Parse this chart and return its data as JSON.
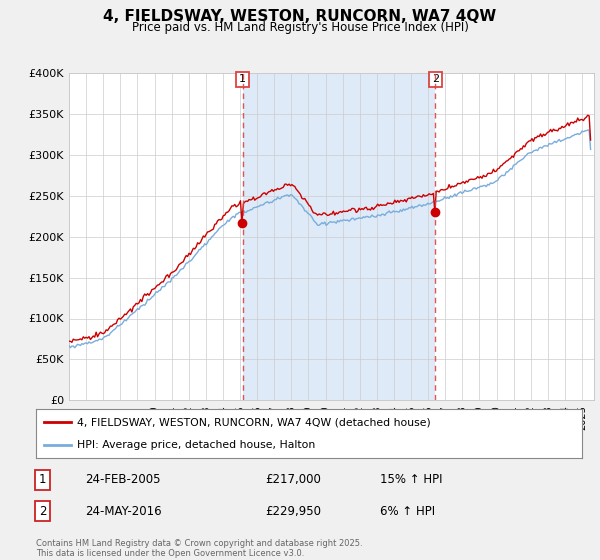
{
  "title": "4, FIELDSWAY, WESTON, RUNCORN, WA7 4QW",
  "subtitle": "Price paid vs. HM Land Registry's House Price Index (HPI)",
  "ylim": [
    0,
    400000
  ],
  "yticks": [
    0,
    50000,
    100000,
    150000,
    200000,
    250000,
    300000,
    350000,
    400000
  ],
  "line1_color": "#cc0000",
  "line2_color": "#7aaddb",
  "vline_color": "#dd4444",
  "shade_color": "#deeaf7",
  "marker1_year": 2005.15,
  "marker2_year": 2016.42,
  "legend_label1": "4, FIELDSWAY, WESTON, RUNCORN, WA7 4QW (detached house)",
  "legend_label2": "HPI: Average price, detached house, Halton",
  "annotation1": [
    "1",
    "24-FEB-2005",
    "£217,000",
    "15% ↑ HPI"
  ],
  "annotation2": [
    "2",
    "24-MAY-2016",
    "£229,950",
    "6% ↑ HPI"
  ],
  "footer": "Contains HM Land Registry data © Crown copyright and database right 2025.\nThis data is licensed under the Open Government Licence v3.0.",
  "background_color": "#f0f0f0",
  "plot_bg_color": "#ffffff"
}
